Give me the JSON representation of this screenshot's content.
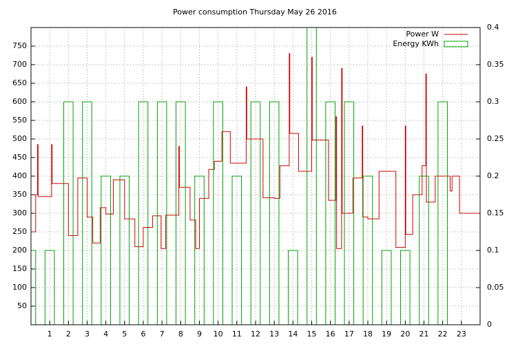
{
  "chart_data": {
    "type": "line",
    "title": "Power consumption Thursday May 26 2016",
    "xlim": [
      0,
      24
    ],
    "xticks": [
      1,
      2,
      3,
      4,
      5,
      6,
      7,
      8,
      9,
      10,
      11,
      12,
      13,
      14,
      15,
      16,
      17,
      18,
      19,
      20,
      21,
      22,
      23
    ],
    "ylim": [
      0,
      800
    ],
    "yticks": [
      50,
      100,
      150,
      200,
      250,
      300,
      350,
      400,
      450,
      500,
      550,
      600,
      650,
      700,
      750
    ],
    "y2lim": [
      0,
      0.4
    ],
    "y2ticks": [
      0,
      0.05,
      0.1,
      0.15,
      0.2,
      0.25,
      0.3,
      0.35,
      0.4
    ],
    "grid": true,
    "legend": "top-right",
    "series": [
      {
        "name": "Power W",
        "color": "#cc0000",
        "type": "line",
        "x": [
          0,
          0.25,
          0.25,
          0.35,
          0.35,
          0.38,
          0.38,
          1.1,
          1.1,
          1.13,
          1.13,
          2.0,
          2.0,
          2.5,
          2.5,
          3.0,
          3.0,
          3.3,
          3.3,
          3.7,
          3.7,
          4.0,
          4.0,
          4.4,
          4.4,
          5.0,
          5.0,
          5.55,
          5.55,
          6.0,
          6.0,
          6.5,
          6.5,
          6.95,
          6.95,
          7.2,
          7.2,
          7.9,
          7.9,
          7.93,
          7.93,
          8.5,
          8.5,
          8.8,
          8.8,
          9.0,
          9.0,
          9.5,
          9.5,
          9.8,
          9.8,
          10.2,
          10.2,
          10.65,
          10.65,
          11.5,
          11.5,
          11.53,
          11.53,
          12.4,
          12.4,
          13.0,
          13.0,
          13.3,
          13.3,
          13.8,
          13.8,
          13.83,
          13.83,
          14.3,
          14.3,
          15.0,
          15.0,
          15.03,
          15.03,
          15.9,
          15.9,
          16.3,
          16.3,
          16.33,
          16.33,
          16.6,
          16.6,
          16.63,
          16.63,
          17.2,
          17.2,
          17.7,
          17.7,
          17.73,
          17.73,
          18.0,
          18.0,
          18.6,
          18.6,
          19.5,
          19.5,
          20.0,
          20.0,
          20.03,
          20.03,
          20.4,
          20.4,
          20.9,
          20.9,
          21.1,
          21.1,
          21.13,
          21.13,
          21.6,
          21.6,
          22.4,
          22.4,
          22.5,
          22.5,
          22.9,
          22.9,
          24
        ],
        "values": [
          250,
          250,
          350,
          350,
          485,
          485,
          345,
          345,
          485,
          485,
          380,
          380,
          240,
          240,
          395,
          395,
          290,
          290,
          220,
          220,
          315,
          315,
          298,
          298,
          390,
          390,
          285,
          285,
          210,
          210,
          262,
          262,
          293,
          293,
          205,
          205,
          295,
          295,
          480,
          480,
          370,
          370,
          282,
          282,
          205,
          205,
          340,
          340,
          418,
          418,
          440,
          440,
          520,
          520,
          435,
          435,
          640,
          640,
          500,
          500,
          342,
          342,
          340,
          340,
          428,
          428,
          730,
          730,
          515,
          515,
          413,
          413,
          720,
          720,
          497,
          497,
          335,
          335,
          560,
          560,
          205,
          205,
          690,
          690,
          300,
          300,
          395,
          395,
          535,
          535,
          290,
          290,
          285,
          285,
          413,
          413,
          208,
          208,
          535,
          535,
          243,
          243,
          350,
          350,
          428,
          428,
          675,
          675,
          330,
          330,
          400,
          400,
          360,
          360,
          400,
          400,
          300,
          300
        ]
      },
      {
        "name": "Energy KWh",
        "color": "#00a000",
        "type": "bar",
        "axis": "y2",
        "x": [
          0,
          1,
          2,
          3,
          4,
          5,
          6,
          7,
          8,
          9,
          10,
          11,
          12,
          13,
          14,
          15,
          16,
          17,
          18,
          19,
          20,
          21,
          22
        ],
        "values": [
          0.1,
          0.1,
          0.3,
          0.3,
          0.2,
          0.2,
          0.3,
          0.3,
          0.3,
          0.2,
          0.3,
          0.2,
          0.3,
          0.3,
          0.1,
          0.4,
          0.3,
          0.3,
          0.2,
          0.1,
          0.1,
          0.2,
          0.3
        ]
      }
    ]
  }
}
